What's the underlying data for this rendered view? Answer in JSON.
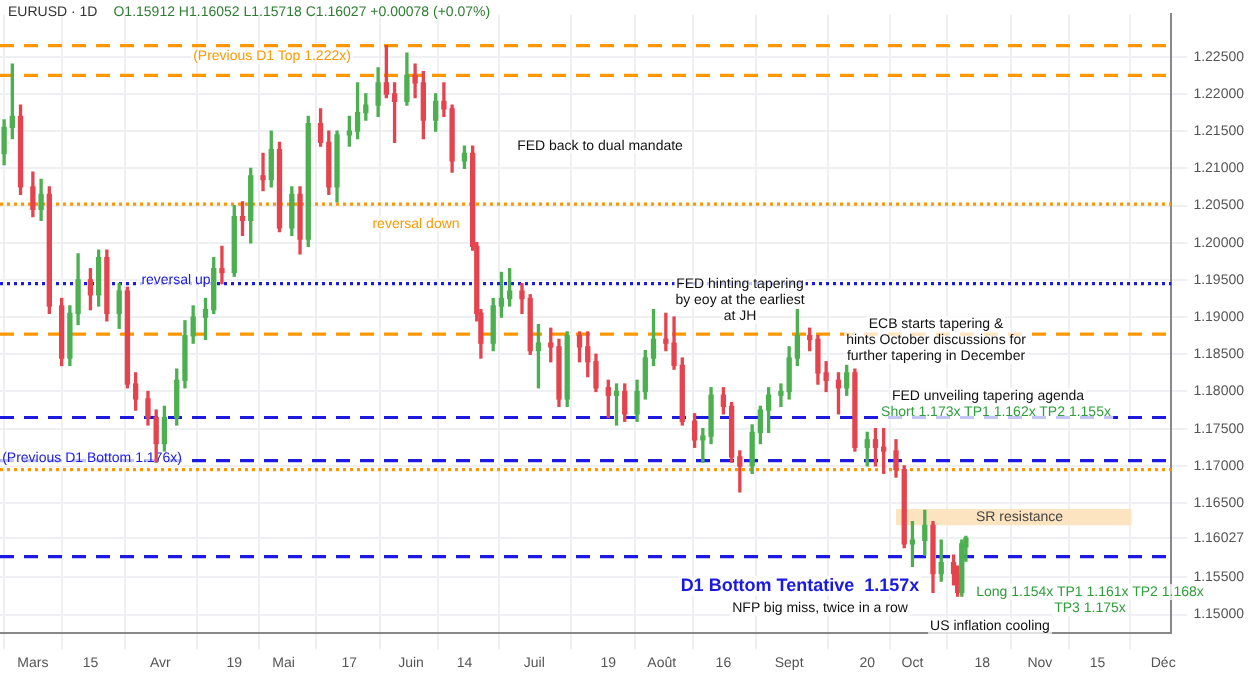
{
  "chart_data": {
    "type": "candlestick",
    "title": "EURUSD · 1D",
    "subtitle": "O1.15912 H1.16052 L1.15718 C1.16027 +0.00078 (+0.07%)",
    "x": [
      "--02-22",
      "--02-24",
      "--02-26",
      "--03-01",
      "--03-03",
      "--03-05",
      "--03-08",
      "--03-10",
      "--03-12",
      "--03-15",
      "--03-17",
      "--03-19",
      "--03-22",
      "--03-24",
      "--03-26",
      "--03-29",
      "--03-31",
      "--04-02",
      "--04-05",
      "--04-07",
      "--04-09",
      "--04-12",
      "--04-14",
      "--04-16",
      "--04-19",
      "--04-21",
      "--04-23",
      "--04-26",
      "--04-28",
      "--04-30",
      "--05-03",
      "--05-05",
      "--05-07",
      "--05-10",
      "--05-12",
      "--05-14",
      "--05-17",
      "--05-19",
      "--05-21",
      "--05-24",
      "--05-26",
      "--05-28",
      "--05-31",
      "--06-02",
      "--06-04",
      "--06-07",
      "--06-09",
      "--06-11",
      "--06-14",
      "--06-16",
      "--06-17",
      "--06-18",
      "--06-21",
      "--06-23",
      "--06-25",
      "--06-28",
      "--06-30",
      "--07-02",
      "--07-05",
      "--07-07",
      "--07-09",
      "--07-12",
      "--07-14",
      "--07-16",
      "--07-19",
      "--07-21",
      "--07-23",
      "--07-26",
      "--07-28",
      "--07-30",
      "--08-02",
      "--08-04",
      "--08-06",
      "--08-09",
      "--08-11",
      "--08-13",
      "--08-16",
      "--08-18",
      "--08-20",
      "--08-23",
      "--08-25",
      "--08-27",
      "--08-30",
      "--09-01",
      "--09-03",
      "--09-06",
      "--09-08",
      "--09-10",
      "--09-13",
      "--09-15",
      "--09-17",
      "--09-20",
      "--09-22",
      "--09-24",
      "--09-27",
      "--09-29",
      "--10-01",
      "--10-04",
      "--10-06",
      "--10-08",
      "--10-11",
      "--10-12",
      "--10-13",
      "--10-14"
    ],
    "ohlc": [
      [
        1.212,
        1.2165,
        1.2105,
        1.2155
      ],
      [
        1.2155,
        1.224,
        1.214,
        1.217
      ],
      [
        1.217,
        1.2185,
        1.2065,
        1.2075
      ],
      [
        1.2075,
        1.2095,
        1.2035,
        1.2045
      ],
      [
        1.2045,
        1.2085,
        1.203,
        1.2065
      ],
      [
        1.2065,
        1.2075,
        1.1905,
        1.1915
      ],
      [
        1.1915,
        1.1925,
        1.1835,
        1.1845
      ],
      [
        1.1845,
        1.1915,
        1.1835,
        1.1905
      ],
      [
        1.1905,
        1.1985,
        1.189,
        1.195
      ],
      [
        1.195,
        1.1965,
        1.191,
        1.193
      ],
      [
        1.193,
        1.199,
        1.1915,
        1.198
      ],
      [
        1.198,
        1.199,
        1.1895,
        1.1905
      ],
      [
        1.1905,
        1.1945,
        1.1885,
        1.1935
      ],
      [
        1.1935,
        1.194,
        1.1805,
        1.181
      ],
      [
        1.181,
        1.1825,
        1.1775,
        1.179
      ],
      [
        1.179,
        1.18,
        1.1755,
        1.1765
      ],
      [
        1.1765,
        1.1775,
        1.1705,
        1.173
      ],
      [
        1.173,
        1.178,
        1.172,
        1.1765
      ],
      [
        1.1765,
        1.183,
        1.1755,
        1.1815
      ],
      [
        1.1815,
        1.1895,
        1.1805,
        1.1875
      ],
      [
        1.1875,
        1.1915,
        1.1865,
        1.19
      ],
      [
        1.19,
        1.1925,
        1.187,
        1.191
      ],
      [
        1.191,
        1.198,
        1.1905,
        1.1965
      ],
      [
        1.1965,
        1.1995,
        1.1945,
        1.196
      ],
      [
        1.196,
        1.205,
        1.1955,
        1.2035
      ],
      [
        1.2035,
        1.2055,
        1.201,
        1.203
      ],
      [
        1.203,
        1.21,
        1.2,
        1.209
      ],
      [
        1.209,
        1.212,
        1.207,
        1.2085
      ],
      [
        1.2085,
        1.215,
        1.2075,
        1.2125
      ],
      [
        1.2125,
        1.2135,
        1.2015,
        1.202
      ],
      [
        1.202,
        1.2075,
        1.201,
        1.2065
      ],
      [
        1.2065,
        1.2075,
        1.1985,
        1.2005
      ],
      [
        1.2005,
        1.217,
        1.1995,
        1.216
      ],
      [
        1.216,
        1.218,
        1.213,
        1.2135
      ],
      [
        1.2135,
        1.215,
        1.2065,
        1.2075
      ],
      [
        1.2075,
        1.215,
        1.2055,
        1.2145
      ],
      [
        1.2145,
        1.217,
        1.213,
        1.215
      ],
      [
        1.215,
        1.2215,
        1.214,
        1.2175
      ],
      [
        1.2175,
        1.22,
        1.2165,
        1.2185
      ],
      [
        1.2185,
        1.2235,
        1.217,
        1.2215
      ],
      [
        1.2215,
        1.2265,
        1.2195,
        1.22
      ],
      [
        1.22,
        1.2215,
        1.2135,
        1.219
      ],
      [
        1.219,
        1.2255,
        1.2185,
        1.2225
      ],
      [
        1.2225,
        1.224,
        1.2195,
        1.2215
      ],
      [
        1.2215,
        1.223,
        1.214,
        1.2165
      ],
      [
        1.2165,
        1.22,
        1.215,
        1.219
      ],
      [
        1.219,
        1.2215,
        1.217,
        1.218
      ],
      [
        1.218,
        1.2185,
        1.2095,
        1.211
      ],
      [
        1.211,
        1.213,
        1.21,
        1.212
      ],
      [
        1.212,
        1.213,
        1.199,
        1.1995
      ],
      [
        1.1995,
        1.2,
        1.1895,
        1.1905
      ],
      [
        1.1905,
        1.191,
        1.1845,
        1.1865
      ],
      [
        1.1865,
        1.1925,
        1.1855,
        1.1915
      ],
      [
        1.1915,
        1.196,
        1.19,
        1.1925
      ],
      [
        1.1925,
        1.1965,
        1.1915,
        1.1935
      ],
      [
        1.1935,
        1.1945,
        1.1905,
        1.1925
      ],
      [
        1.1925,
        1.193,
        1.185,
        1.1855
      ],
      [
        1.1855,
        1.189,
        1.1805,
        1.1865
      ],
      [
        1.1865,
        1.1885,
        1.184,
        1.186
      ],
      [
        1.186,
        1.187,
        1.178,
        1.179
      ],
      [
        1.179,
        1.188,
        1.178,
        1.1875
      ],
      [
        1.1875,
        1.188,
        1.184,
        1.186
      ],
      [
        1.186,
        1.188,
        1.182,
        1.184
      ],
      [
        1.184,
        1.185,
        1.18,
        1.1805
      ],
      [
        1.1805,
        1.1815,
        1.1765,
        1.1795
      ],
      [
        1.1795,
        1.181,
        1.1755,
        1.18
      ],
      [
        1.18,
        1.181,
        1.176,
        1.177
      ],
      [
        1.177,
        1.1815,
        1.176,
        1.18
      ],
      [
        1.18,
        1.1855,
        1.179,
        1.1845
      ],
      [
        1.1845,
        1.191,
        1.1835,
        1.187
      ],
      [
        1.187,
        1.1905,
        1.1855,
        1.1865
      ],
      [
        1.1865,
        1.19,
        1.183,
        1.1835
      ],
      [
        1.1835,
        1.1845,
        1.1755,
        1.176
      ],
      [
        1.176,
        1.177,
        1.1725,
        1.1735
      ],
      [
        1.1735,
        1.175,
        1.1705,
        1.174
      ],
      [
        1.174,
        1.1805,
        1.173,
        1.1795
      ],
      [
        1.1795,
        1.1805,
        1.177,
        1.178
      ],
      [
        1.178,
        1.1785,
        1.1705,
        1.1712
      ],
      [
        1.1712,
        1.172,
        1.1665,
        1.17
      ],
      [
        1.17,
        1.1755,
        1.169,
        1.1745
      ],
      [
        1.1745,
        1.178,
        1.173,
        1.1775
      ],
      [
        1.1775,
        1.1805,
        1.1745,
        1.1795
      ],
      [
        1.1795,
        1.181,
        1.178,
        1.18
      ],
      [
        1.18,
        1.186,
        1.179,
        1.1845
      ],
      [
        1.1845,
        1.191,
        1.1835,
        1.1875
      ],
      [
        1.1875,
        1.1885,
        1.1855,
        1.187
      ],
      [
        1.187,
        1.1875,
        1.181,
        1.1825
      ],
      [
        1.1825,
        1.184,
        1.18,
        1.1815
      ],
      [
        1.1815,
        1.1825,
        1.177,
        1.1805
      ],
      [
        1.1805,
        1.1835,
        1.1795,
        1.1825
      ],
      [
        1.1825,
        1.183,
        1.172,
        1.1725
      ],
      [
        1.1725,
        1.1745,
        1.17,
        1.1735
      ],
      [
        1.1735,
        1.175,
        1.17,
        1.1725
      ],
      [
        1.1725,
        1.175,
        1.169,
        1.172
      ],
      [
        1.172,
        1.1735,
        1.1685,
        1.1695
      ],
      [
        1.1695,
        1.17,
        1.159,
        1.1595
      ],
      [
        1.1595,
        1.1625,
        1.1565,
        1.16
      ],
      [
        1.16,
        1.164,
        1.158,
        1.162
      ],
      [
        1.162,
        1.1625,
        1.153,
        1.1555
      ],
      [
        1.1555,
        1.16,
        1.1545,
        1.157
      ],
      [
        1.157,
        1.158,
        1.154,
        1.1555
      ],
      [
        1.1555,
        1.1565,
        1.1525,
        1.153
      ],
      [
        1.153,
        1.16,
        1.1525,
        1.15949
      ],
      [
        1.15912,
        1.16052,
        1.15718,
        1.16027
      ]
    ],
    "xlim": [
      "--02-21",
      "--12-03"
    ],
    "xticks": [
      {
        "value": "--03-01",
        "label": "Mars"
      },
      {
        "value": "--03-15",
        "label": "15"
      },
      {
        "value": "--04-01",
        "label": "Avr"
      },
      {
        "value": "--04-19",
        "label": "19"
      },
      {
        "value": "--05-01",
        "label": "Mai"
      },
      {
        "value": "--05-17",
        "label": "17"
      },
      {
        "value": "--06-01",
        "label": "Juin"
      },
      {
        "value": "--06-14",
        "label": "14"
      },
      {
        "value": "--07-01",
        "label": "Juil"
      },
      {
        "value": "--07-19",
        "label": "19"
      },
      {
        "value": "--08-01",
        "label": "Août"
      },
      {
        "value": "--08-16",
        "label": "16"
      },
      {
        "value": "--09-01",
        "label": "Sept"
      },
      {
        "value": "--09-20",
        "label": "20"
      },
      {
        "value": "--10-01",
        "label": "Oct"
      },
      {
        "value": "--10-18",
        "label": "18"
      },
      {
        "value": "--11-01",
        "label": "Nov"
      },
      {
        "value": "--11-15",
        "label": "15"
      },
      {
        "value": "--12-01",
        "label": "Déc"
      }
    ],
    "ylim": [
      1.1475,
      1.2307
    ],
    "yticks": [
      {
        "value": 1.15,
        "label": "1.15000"
      },
      {
        "value": 1.155,
        "label": "1.15500"
      },
      {
        "value": 1.16027,
        "label": "1.16027"
      },
      {
        "value": 1.165,
        "label": "1.16500"
      },
      {
        "value": 1.17,
        "label": "1.17000"
      },
      {
        "value": 1.175,
        "label": "1.17500"
      },
      {
        "value": 1.18,
        "label": "1.18000"
      },
      {
        "value": 1.185,
        "label": "1.18500"
      },
      {
        "value": 1.19,
        "label": "1.19000"
      },
      {
        "value": 1.195,
        "label": "1.19500"
      },
      {
        "value": 1.2,
        "label": "1.20000"
      },
      {
        "value": 1.205,
        "label": "1.20500"
      },
      {
        "value": 1.21,
        "label": "1.21000"
      },
      {
        "value": 1.215,
        "label": "1.21500"
      },
      {
        "value": 1.22,
        "label": "1.22000"
      },
      {
        "value": 1.225,
        "label": "1.22500"
      }
    ],
    "grid": true,
    "ref_lines": [
      {
        "axis": "y",
        "value": 1.2265,
        "color": "#ff9800",
        "line_style": "dashed"
      },
      {
        "axis": "y",
        "value": 1.2225,
        "color": "#ff9800",
        "line_style": "dashed"
      },
      {
        "axis": "y",
        "value": 1.2052,
        "color": "#ff9800",
        "line_style": "dotted"
      },
      {
        "axis": "y",
        "value": 1.1945,
        "color": "#1a1ae0",
        "line_style": "dotted"
      },
      {
        "axis": "y",
        "value": 1.1877,
        "color": "#ff9800",
        "line_style": "dashed"
      },
      {
        "axis": "y",
        "value": 1.1765,
        "color": "#1a1ae0",
        "line_style": "dashed"
      },
      {
        "axis": "y",
        "value": 1.1707,
        "color": "#1a1ae0",
        "line_style": "dashed"
      },
      {
        "axis": "y",
        "value": 1.1695,
        "color": "#ff9800",
        "line_style": "dotted"
      },
      {
        "axis": "y",
        "value": 1.1578,
        "color": "#1a1ae0",
        "line_style": "dashed"
      }
    ],
    "bands": [
      {
        "axis": "y",
        "from": 1.162,
        "to": 1.1642,
        "label": "SR resistance",
        "color": "#fde4c0"
      }
    ],
    "annotations": [
      "(Previous D1 Top 1.222x)",
      "FED back to dual mandate",
      "reversal down",
      "reversal up",
      "(Previous D1 Bottom 1.176x)",
      "FED hinting tapering\nby eoy at the earliest\nat JH",
      "ECB starts tapering &\nhints October discussions for\nfurther tapering in December",
      "FED unveiling tapering agenda",
      "Short 1.173x TP1 1.162x TP2 1.155x",
      "D1 Bottom Tentative  1.157x",
      "NFP big miss, twice in a row",
      "Long 1.154x TP1 1.161x TP2 1.168x\nTP3 1.175x",
      "US inflation cooling"
    ]
  }
}
